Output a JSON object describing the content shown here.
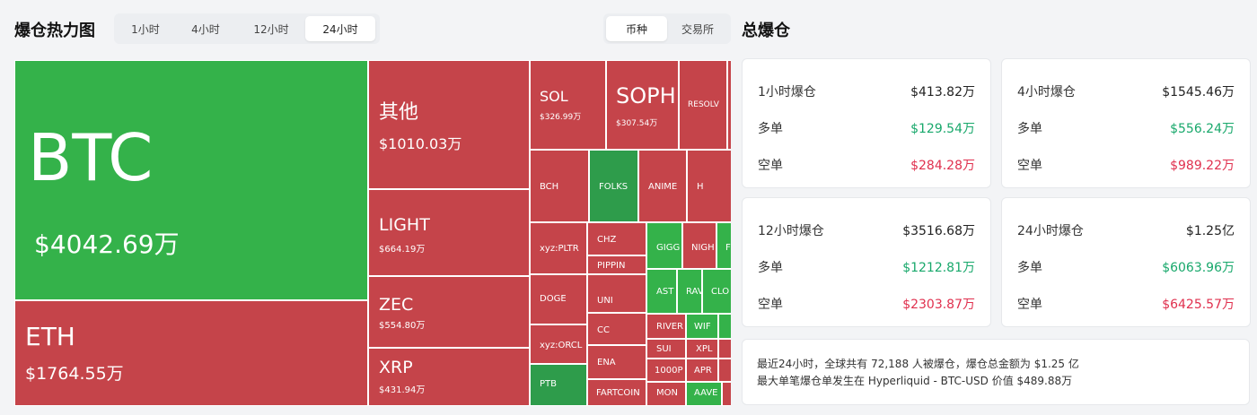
{
  "header": {
    "title": "爆仓热力图",
    "time_tabs": [
      {
        "label": "1小时",
        "active": false
      },
      {
        "label": "4小时",
        "active": false
      },
      {
        "label": "12小时",
        "active": false
      },
      {
        "label": "24小时",
        "active": true
      }
    ],
    "group_tabs": [
      {
        "label": "币种",
        "active": true
      },
      {
        "label": "交易所",
        "active": false
      }
    ],
    "summary_title": "总爆仓"
  },
  "treemap": {
    "cells": [
      {
        "symbol": "BTC",
        "value": "$4042.69万",
        "color": "#34b24a"
      },
      {
        "symbol": "ETH",
        "value": "$1764.55万",
        "color": "#c5444a"
      },
      {
        "symbol": "其他",
        "value": "$1010.03万",
        "color": "#c5444a"
      },
      {
        "symbol": "LIGHT",
        "value": "$664.19万",
        "color": "#c5444a"
      },
      {
        "symbol": "ZEC",
        "value": "$554.80万",
        "color": "#c5444a"
      },
      {
        "symbol": "XRP",
        "value": "$431.94万",
        "color": "#c5444a"
      },
      {
        "symbol": "SOL",
        "value": "$326.99万",
        "color": "#c5444a"
      },
      {
        "symbol": "SOPH",
        "value": "$307.54万",
        "color": "#c5444a"
      },
      {
        "symbol": "RESOLV",
        "value": "",
        "color": "#c5444a"
      },
      {
        "symbol": "BCH",
        "value": "",
        "color": "#c5444a"
      },
      {
        "symbol": "FOLKS",
        "value": "",
        "color": "#2e9c4b"
      },
      {
        "symbol": "ANIME",
        "value": "",
        "color": "#c5444a"
      },
      {
        "symbol": "H",
        "value": "",
        "color": "#c5444a"
      },
      {
        "symbol": "xyz:PLTR",
        "value": "",
        "color": "#c5444a"
      },
      {
        "symbol": "CHZ",
        "value": "",
        "color": "#c5444a"
      },
      {
        "symbol": "PIPPIN",
        "value": "",
        "color": "#c5444a"
      },
      {
        "symbol": "GIGG",
        "value": "",
        "color": "#34b24a"
      },
      {
        "symbol": "NIGH",
        "value": "",
        "color": "#c5444a"
      },
      {
        "symbol": "F",
        "value": "",
        "color": "#34b24a"
      },
      {
        "symbol": "DOGE",
        "value": "",
        "color": "#c5444a"
      },
      {
        "symbol": "UNI",
        "value": "",
        "color": "#c5444a"
      },
      {
        "symbol": "AST",
        "value": "",
        "color": "#34b24a"
      },
      {
        "symbol": "RAV",
        "value": "",
        "color": "#34b24a"
      },
      {
        "symbol": "CLO",
        "value": "",
        "color": "#34b24a"
      },
      {
        "symbol": "xyz:ORCL",
        "value": "",
        "color": "#c5444a"
      },
      {
        "symbol": "CC",
        "value": "",
        "color": "#c5444a"
      },
      {
        "symbol": "RIVER",
        "value": "",
        "color": "#c5444a"
      },
      {
        "symbol": "WIF",
        "value": "",
        "color": "#34b24a"
      },
      {
        "symbol": "SUI",
        "value": "",
        "color": "#c5444a"
      },
      {
        "symbol": "XPL",
        "value": "",
        "color": "#c5444a"
      },
      {
        "symbol": "ENA",
        "value": "",
        "color": "#c5444a"
      },
      {
        "symbol": "1000P",
        "value": "",
        "color": "#c5444a"
      },
      {
        "symbol": "APR",
        "value": "",
        "color": "#c5444a"
      },
      {
        "symbol": "PTB",
        "value": "",
        "color": "#34b24a"
      },
      {
        "symbol": "FARTCOIN",
        "value": "",
        "color": "#c5444a"
      },
      {
        "symbol": "MON",
        "value": "",
        "color": "#c5444a"
      },
      {
        "symbol": "AAVE",
        "value": "",
        "color": "#34b24a"
      }
    ]
  },
  "summary": {
    "cards": [
      {
        "title": "1小时爆仓",
        "total": "$413.82万",
        "long_label": "多单",
        "long": "$129.54万",
        "short_label": "空单",
        "short": "$284.28万"
      },
      {
        "title": "4小时爆仓",
        "total": "$1545.46万",
        "long_label": "多单",
        "long": "$556.24万",
        "short_label": "空单",
        "short": "$989.22万"
      },
      {
        "title": "12小时爆仓",
        "total": "$3516.68万",
        "long_label": "多单",
        "long": "$1212.81万",
        "short_label": "空单",
        "short": "$2303.87万"
      },
      {
        "title": "24小时爆仓",
        "total": "$1.25亿",
        "long_label": "多单",
        "long": "$6063.96万",
        "short_label": "空单",
        "short": "$6425.57万"
      }
    ],
    "note_line1": "最近24小时，全球共有 72,188 人被爆仓，爆仓总金额为 $1.25 亿",
    "note_line2": "最大单笔爆仓单发生在 Hyperliquid - BTC-USD 价值 $489.88万"
  }
}
